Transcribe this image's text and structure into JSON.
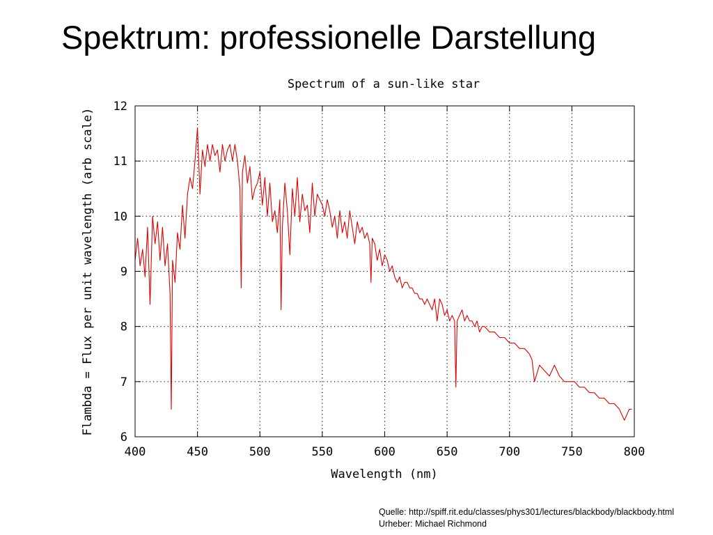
{
  "slide": {
    "title": "Spektrum: professionelle Darstellung",
    "source_line": "Quelle: http://spiff.rit.edu/classes/phys301/lectures/blackbody/blackbody.html",
    "author_line": "Urheber: Michael Richmond"
  },
  "chart_data": {
    "type": "line",
    "title": "Spectrum of a sun-like star",
    "xlabel": "Wavelength (nm)",
    "ylabel": "Flambda = Flux per unit wavelength (arb scale)",
    "xlim": [
      400,
      800
    ],
    "ylim": [
      6,
      12
    ],
    "x_ticks": [
      400,
      450,
      500,
      550,
      600,
      650,
      700,
      750,
      800
    ],
    "y_ticks": [
      6,
      7,
      8,
      9,
      10,
      11,
      12
    ],
    "grid": true,
    "legend": "none",
    "line_color": "#dd0000",
    "series": [
      {
        "x": [
          400,
          402,
          404,
          406,
          408,
          410,
          412,
          414,
          416,
          418,
          420,
          422,
          424,
          426,
          428,
          429,
          430,
          432,
          434,
          436,
          438,
          440,
          442,
          444,
          446,
          448,
          450,
          452,
          454,
          456,
          458,
          460,
          462,
          464,
          466,
          468,
          470,
          472,
          474,
          476,
          478,
          480,
          482,
          484,
          485,
          486,
          488,
          490,
          492,
          494,
          496,
          498,
          500,
          502,
          504,
          506,
          508,
          510,
          512,
          514,
          516,
          517,
          518,
          520,
          522,
          524,
          526,
          528,
          530,
          532,
          534,
          536,
          538,
          540,
          542,
          544,
          546,
          548,
          550,
          552,
          554,
          556,
          558,
          560,
          562,
          564,
          566,
          568,
          570,
          572,
          574,
          576,
          578,
          580,
          582,
          584,
          586,
          588,
          589,
          590,
          592,
          594,
          596,
          598,
          600,
          602,
          604,
          606,
          608,
          610,
          612,
          614,
          616,
          618,
          620,
          622,
          624,
          626,
          628,
          630,
          632,
          634,
          636,
          638,
          640,
          642,
          644,
          646,
          648,
          650,
          652,
          654,
          656,
          657,
          658,
          660,
          662,
          664,
          666,
          668,
          670,
          672,
          674,
          676,
          678,
          680,
          684,
          688,
          692,
          696,
          700,
          704,
          708,
          712,
          716,
          718,
          720,
          724,
          728,
          732,
          736,
          740,
          744,
          748,
          752,
          756,
          760,
          764,
          768,
          772,
          776,
          780,
          784,
          788,
          792,
          794,
          796,
          798
        ],
        "y": [
          9.2,
          9.6,
          9.1,
          9.4,
          8.9,
          9.8,
          8.4,
          10.0,
          9.5,
          9.9,
          9.2,
          9.8,
          9.1,
          9.5,
          8.6,
          6.5,
          9.2,
          8.8,
          9.7,
          9.4,
          10.2,
          9.6,
          10.4,
          10.7,
          10.5,
          11.0,
          11.6,
          10.4,
          11.2,
          10.9,
          11.3,
          11.0,
          11.3,
          11.1,
          11.2,
          10.8,
          11.3,
          11.0,
          11.2,
          11.3,
          11.0,
          11.3,
          11.0,
          10.5,
          8.7,
          10.8,
          11.1,
          10.6,
          10.9,
          10.3,
          10.5,
          10.6,
          10.8,
          10.2,
          10.7,
          10.0,
          10.6,
          9.9,
          10.1,
          9.7,
          10.3,
          8.3,
          9.8,
          10.6,
          10.1,
          9.3,
          10.5,
          10.0,
          10.7,
          9.9,
          10.4,
          10.1,
          10.2,
          9.7,
          10.6,
          10.0,
          10.4,
          10.3,
          10.2,
          10.0,
          10.3,
          10.1,
          9.8,
          10.0,
          9.6,
          10.1,
          9.7,
          9.9,
          9.6,
          10.1,
          9.8,
          9.5,
          9.9,
          9.7,
          9.8,
          9.6,
          9.7,
          9.5,
          8.8,
          9.6,
          9.5,
          9.2,
          9.4,
          9.1,
          9.3,
          9.2,
          9.0,
          9.1,
          8.9,
          8.8,
          8.9,
          8.7,
          8.8,
          8.8,
          8.7,
          8.7,
          8.6,
          8.6,
          8.5,
          8.5,
          8.4,
          8.5,
          8.4,
          8.3,
          8.5,
          8.1,
          8.5,
          8.4,
          8.2,
          8.3,
          8.1,
          8.2,
          8.1,
          6.9,
          8.1,
          8.2,
          8.3,
          8.1,
          8.2,
          8.1,
          8.1,
          8.0,
          8.1,
          7.9,
          8.0,
          8.0,
          7.9,
          7.9,
          7.8,
          7.8,
          7.7,
          7.7,
          7.6,
          7.6,
          7.5,
          7.4,
          7.0,
          7.3,
          7.2,
          7.1,
          7.3,
          7.1,
          7.0,
          7.0,
          7.0,
          6.9,
          6.9,
          6.8,
          6.8,
          6.7,
          6.7,
          6.6,
          6.6,
          6.5,
          6.3,
          6.4,
          6.5,
          6.5
        ]
      }
    ]
  }
}
